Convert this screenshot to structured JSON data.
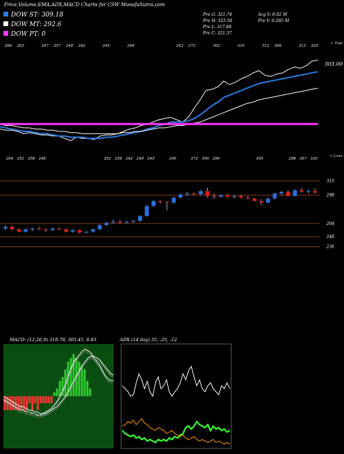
{
  "header": {
    "title": "Price,Volume,EMA,ADX,MACD Charts for CSW MunafaSutra.com",
    "legend": [
      {
        "label": "DOW ST: 309.18",
        "color": "#2a7de1"
      },
      {
        "label": "DOW MT: 292.6",
        "color": "#ffffff"
      },
      {
        "label": "DOW PT: 0",
        "color": "#ff33ff"
      }
    ],
    "stats_left": [
      "Pre  O: 321.74",
      "Pre  H: 325.50",
      "Pre  L: 317.89",
      "Pre  C: 321.37"
    ],
    "stats_right": [
      "Avg V: 0.02  M",
      "Pre  V: 0.285  M"
    ]
  },
  "chart_data": [
    {
      "type": "line",
      "panel": "ema",
      "ticks_top": [
        "266",
        "263",
        "",
        "247",
        "257",
        "240",
        "242",
        "",
        "245",
        "",
        "249",
        "",
        "",
        "",
        "243",
        "272",
        "",
        "302",
        "",
        "310",
        "",
        "312",
        "308",
        "",
        "313",
        "320"
      ],
      "corner_label": "< Tops",
      "price_label": "303.00",
      "series": [
        {
          "name": "",
          "color": "#ffffff",
          "role": "price",
          "values": [
            262,
            261,
            261,
            260,
            258,
            259,
            258,
            257,
            257,
            256,
            256,
            254,
            252,
            255,
            254,
            254,
            253,
            256,
            257,
            257,
            258,
            260,
            262,
            263,
            265,
            266,
            268,
            270,
            271,
            272,
            270,
            268,
            272,
            280,
            287,
            295,
            296,
            298,
            303,
            300,
            302,
            305,
            307,
            310,
            312,
            308,
            307,
            309,
            310,
            313,
            315,
            314,
            316,
            320,
            321
          ]
        },
        {
          "name": "",
          "color": "#2a7de1",
          "role": "ema-short",
          "values": [
            264,
            263,
            262,
            261,
            260,
            260,
            259,
            258,
            258,
            257,
            256,
            256,
            255,
            255,
            255,
            254,
            254,
            254,
            255,
            255,
            256,
            257,
            258,
            259,
            260,
            262,
            263,
            265,
            266,
            268,
            268,
            268,
            269,
            271,
            274,
            278,
            282,
            285,
            289,
            291,
            293,
            295,
            297,
            299,
            301,
            302,
            303,
            304,
            305,
            306,
            307,
            308,
            309,
            310,
            311
          ]
        },
        {
          "name": "",
          "color": "#ffffff",
          "role": "ema-long",
          "values": [
            266,
            265,
            265,
            264,
            263,
            263,
            262,
            262,
            261,
            261,
            260,
            260,
            259,
            259,
            258,
            258,
            258,
            258,
            258,
            258,
            258,
            259,
            259,
            260,
            260,
            261,
            262,
            263,
            263,
            264,
            265,
            265,
            266,
            267,
            268,
            270,
            272,
            274,
            276,
            278,
            280,
            282,
            284,
            285,
            287,
            288,
            289,
            290,
            291,
            292,
            293,
            294,
            295,
            296,
            297
          ]
        },
        {
          "name": "",
          "color": "#ff33ff",
          "role": "dow-pt",
          "values": [
            266,
            266,
            266,
            266,
            266,
            266,
            266,
            266,
            266,
            266,
            266,
            266,
            266,
            266,
            266,
            266,
            266,
            266,
            266,
            266,
            266,
            266,
            266,
            266,
            266,
            266,
            266,
            266,
            266,
            266,
            266,
            266,
            266,
            266,
            266,
            266,
            266,
            266,
            266,
            266,
            266,
            266,
            266,
            266,
            266,
            266,
            266,
            266,
            266,
            266,
            266,
            266,
            266,
            266,
            266
          ]
        }
      ]
    },
    {
      "type": "candlestick",
      "panel": "price",
      "ticks_top": [
        "264",
        "252",
        "258",
        "248",
        "",
        "",
        "",
        "",
        "",
        "252",
        "258",
        "242",
        "249",
        "245",
        "",
        "240",
        "",
        "272",
        "300",
        "296",
        "",
        "",
        "",
        "305",
        "",
        "",
        "298",
        "307",
        "320"
      ],
      "corner_label": "< Lows",
      "right_labels": [
        "315",
        "298",
        "264",
        "248",
        "236"
      ],
      "levels": [
        315,
        298,
        264,
        248,
        236
      ],
      "ylim": [
        225,
        330
      ],
      "candles": [
        [
          258,
          262,
          256,
          260
        ],
        [
          260,
          261,
          256,
          257
        ],
        [
          257,
          258,
          253,
          254
        ],
        [
          254,
          258,
          253,
          257
        ],
        [
          257,
          259,
          255,
          258
        ],
        [
          258,
          260,
          256,
          257
        ],
        [
          257,
          258,
          254,
          256
        ],
        [
          256,
          259,
          255,
          258
        ],
        [
          258,
          259,
          256,
          257
        ],
        [
          257,
          258,
          253,
          254
        ],
        [
          254,
          257,
          253,
          256
        ],
        [
          256,
          257,
          252,
          253
        ],
        [
          253,
          255,
          252,
          254
        ],
        [
          254,
          258,
          253,
          257
        ],
        [
          257,
          263,
          256,
          262
        ],
        [
          262,
          266,
          261,
          265
        ],
        [
          265,
          268,
          264,
          266
        ],
        [
          266,
          268,
          264,
          265
        ],
        [
          265,
          267,
          264,
          266
        ],
        [
          266,
          268,
          265,
          267
        ],
        [
          267,
          274,
          266,
          273
        ],
        [
          273,
          286,
          272,
          285
        ],
        [
          285,
          292,
          284,
          291
        ],
        [
          291,
          292,
          288,
          290
        ],
        [
          290,
          291,
          280,
          289
        ],
        [
          289,
          296,
          288,
          295
        ],
        [
          295,
          300,
          294,
          299
        ],
        [
          299,
          302,
          298,
          300
        ],
        [
          300,
          301,
          298,
          299
        ],
        [
          299,
          304,
          298,
          303
        ],
        [
          303,
          307,
          295,
          297
        ],
        [
          297,
          300,
          294,
          296
        ],
        [
          296,
          299,
          295,
          298
        ],
        [
          298,
          299,
          295,
          296
        ],
        [
          296,
          298,
          294,
          297
        ],
        [
          297,
          298,
          294,
          295
        ],
        [
          295,
          297,
          293,
          294
        ],
        [
          294,
          295,
          290,
          291
        ],
        [
          291,
          293,
          286,
          289
        ],
        [
          289,
          295,
          288,
          294
        ],
        [
          294,
          301,
          293,
          300
        ],
        [
          300,
          303,
          298,
          302
        ],
        [
          302,
          304,
          296,
          297
        ],
        [
          297,
          305,
          296,
          304
        ],
        [
          304,
          306,
          301,
          302
        ],
        [
          302,
          305,
          300,
          303
        ],
        [
          303,
          306,
          300,
          301
        ]
      ]
    },
    {
      "type": "bar",
      "panel": "macd",
      "label": "MACD: (12,26,9) 318.78, 305.45, 8.83",
      "series": [
        {
          "name": "",
          "color": "#ffffff",
          "role": "macd",
          "values": [
            -2,
            -3,
            -4,
            -5,
            -6,
            -7,
            -8,
            -8,
            -9,
            -9,
            -10,
            -10,
            -11,
            -11,
            -10,
            -9,
            -8,
            -7,
            -5,
            -3,
            0,
            3,
            7,
            12,
            16,
            20,
            22,
            24,
            26,
            27,
            26,
            25,
            22,
            20,
            18,
            15,
            12,
            10,
            9,
            9
          ]
        },
        {
          "name": "",
          "color": "#ffffff",
          "role": "signal",
          "values": [
            0,
            -1,
            -2,
            -3,
            -4,
            -5,
            -6,
            -6,
            -7,
            -8,
            -8,
            -9,
            -9,
            -10,
            -10,
            -10,
            -9,
            -8,
            -7,
            -6,
            -4,
            -2,
            0,
            3,
            6,
            9,
            12,
            15,
            18,
            20,
            22,
            23,
            23,
            22,
            21,
            19,
            17,
            15,
            13,
            12
          ]
        },
        {
          "name": "",
          "color": "#ff3333",
          "role": "histogram-negative",
          "values": [
            -2,
            -2,
            -2,
            -2,
            -2,
            -2,
            -2,
            -2,
            -2,
            -1,
            -2,
            -1,
            -2,
            -1,
            -1,
            -1,
            -1,
            -1,
            0,
            0,
            0,
            0,
            0,
            0,
            0,
            0,
            0,
            0,
            0,
            0,
            0,
            0,
            0,
            0,
            0,
            0,
            0,
            0,
            0,
            0
          ]
        },
        {
          "name": "",
          "color": "#33cc33",
          "role": "histogram-positive",
          "values": [
            0,
            0,
            0,
            0,
            0,
            0,
            0,
            0,
            0,
            0,
            0,
            0,
            0,
            0,
            0,
            0,
            0,
            0,
            1,
            2,
            4,
            5,
            7,
            9,
            10,
            11,
            10,
            9,
            8,
            7,
            4,
            2,
            0,
            -2,
            -3,
            -4,
            -5,
            -5,
            -4,
            -3
          ]
        }
      ]
    },
    {
      "type": "line",
      "panel": "adx",
      "label": "ADX (14  day) 35, -25, -12",
      "series": [
        {
          "name": "",
          "color": "#ffffff",
          "role": "adx",
          "values": [
            42,
            40,
            38,
            35,
            36,
            44,
            50,
            46,
            40,
            45,
            38,
            35,
            44,
            48,
            40,
            42,
            46,
            38,
            35,
            38,
            40,
            44,
            50,
            46,
            52,
            55,
            48,
            42,
            46,
            40,
            38,
            42,
            44,
            40,
            38,
            36,
            42,
            40,
            44,
            40
          ]
        },
        {
          "name": "",
          "color": "#33ff33",
          "role": "plus-di",
          "values": [
            12,
            10,
            9,
            8,
            9,
            7,
            8,
            6,
            7,
            5,
            6,
            5,
            4,
            6,
            5,
            6,
            5,
            7,
            6,
            8,
            7,
            9,
            10,
            14,
            15,
            13,
            15,
            18,
            16,
            15,
            14,
            16,
            12,
            15,
            13,
            14,
            12,
            13,
            11,
            12
          ]
        },
        {
          "name": "",
          "color": "#ff9900",
          "role": "minus-di",
          "values": [
            15,
            16,
            18,
            17,
            19,
            16,
            18,
            20,
            17,
            16,
            14,
            13,
            12,
            14,
            13,
            12,
            10,
            11,
            12,
            10,
            9,
            8,
            9,
            7,
            6,
            7,
            8,
            6,
            5,
            6,
            5,
            4,
            5,
            6,
            4,
            5,
            4,
            3,
            4,
            3
          ]
        }
      ]
    }
  ]
}
